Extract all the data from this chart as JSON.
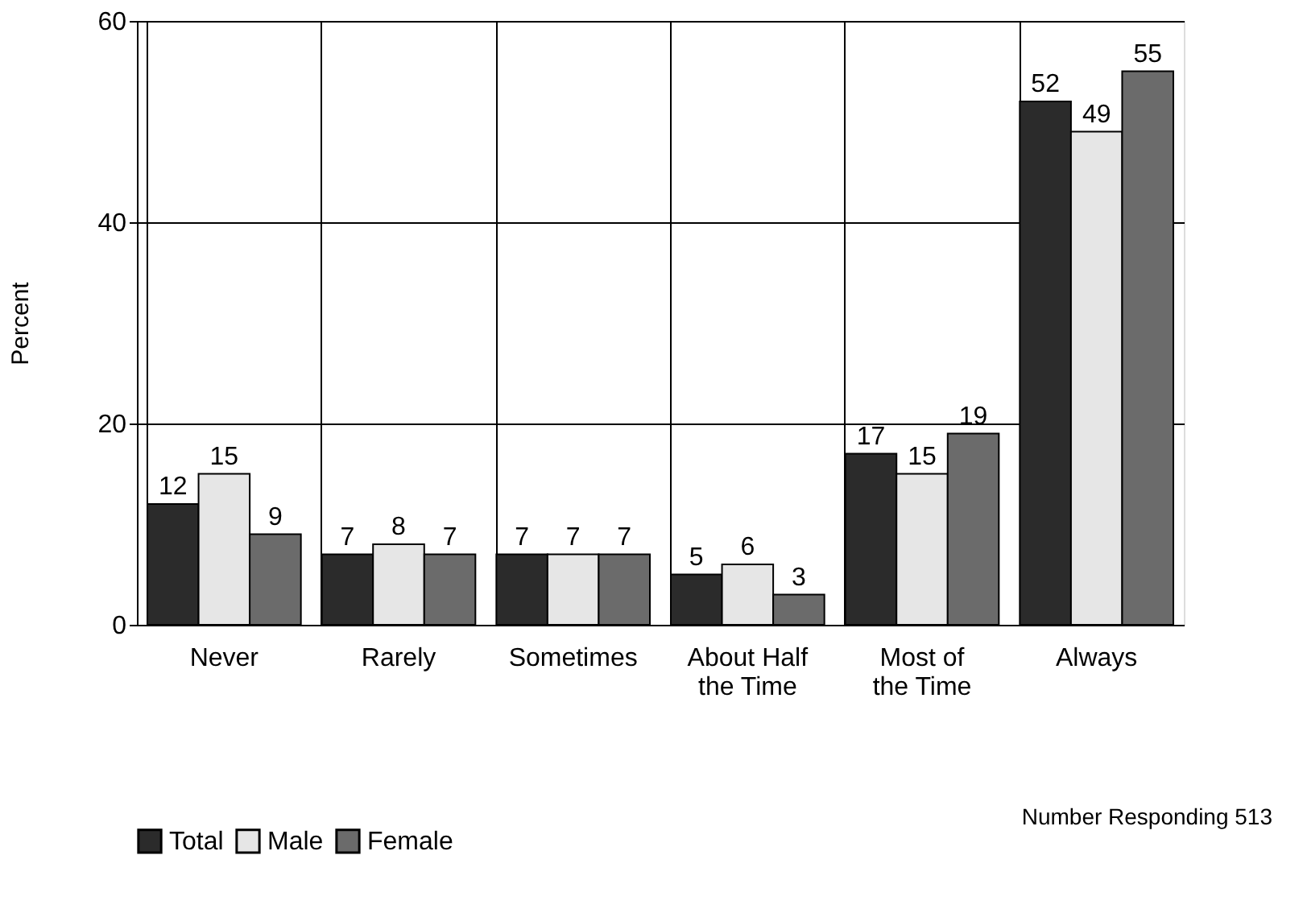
{
  "chart_data": {
    "type": "bar",
    "ylabel": "Percent",
    "categories": [
      "Never",
      "Rarely",
      "Sometimes",
      "About Half\nthe Time",
      "Most of\nthe Time",
      "Always"
    ],
    "series": [
      {
        "name": "Total",
        "color": "#2b2b2b",
        "values": [
          12,
          7,
          7,
          5,
          17,
          52
        ]
      },
      {
        "name": "Male",
        "color": "#e6e6e6",
        "values": [
          15,
          8,
          7,
          6,
          15,
          49
        ]
      },
      {
        "name": "Female",
        "color": "#6b6b6b",
        "values": [
          9,
          7,
          7,
          3,
          19,
          55
        ]
      }
    ],
    "ylim": [
      0,
      60
    ],
    "yticks": [
      0,
      20,
      40,
      60
    ],
    "grid": true,
    "data_labels": true,
    "legend": "bottom left",
    "annotations": [
      "Number Responding 513"
    ]
  }
}
